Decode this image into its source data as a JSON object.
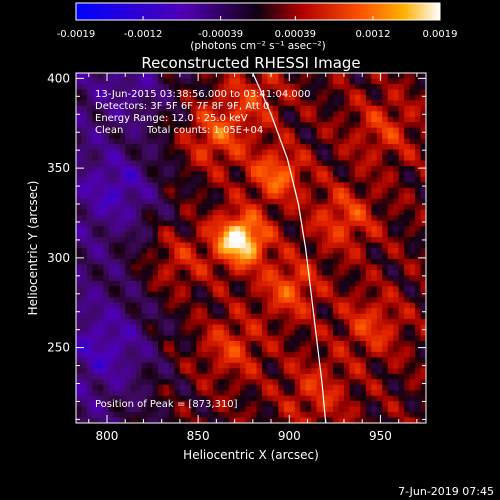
{
  "chart_data": {
    "type": "heatmap",
    "title": "Reconstructed RHESSI Image",
    "xlabel": "Heliocentric X (arcsec)",
    "ylabel": "Heliocentric Y (arcsec)",
    "xlim": [
      783,
      975
    ],
    "ylim": [
      208,
      403
    ],
    "x_ticks": [
      800,
      850,
      900,
      950
    ],
    "y_ticks": [
      250,
      300,
      350,
      400
    ],
    "colorbar": {
      "min": -0.0019,
      "max": 0.0019,
      "tick_values": [
        -0.0019,
        -0.0012,
        -0.00039,
        0.00039,
        0.0012,
        0.0019
      ],
      "tick_labels": [
        "-0.0019",
        "-0.0012",
        "-0.00039",
        "0.00039",
        "0.0012",
        "0.0019"
      ],
      "unit_label": "(photons cm⁻² s⁻¹ asec⁻²)"
    },
    "annotations": {
      "time_range": "13-Jun-2015 03:38:56.000 to 03:41:04.000",
      "detectors": "Detectors: 3F 5F 6F 7F 8F 9F, Att 0",
      "energy": "Energy Range: 12.0 - 25.0 keV",
      "method": "Clean",
      "counts": "Total counts: 1.05E+04",
      "peak_text": "Position of Peak = [873,310]"
    },
    "peak": [
      873,
      310
    ],
    "sources": [
      {
        "x": 873,
        "y": 310,
        "amp": 1.0,
        "sigma": 10
      },
      {
        "x": 893,
        "y": 346,
        "amp": 0.55,
        "sigma": 10
      },
      {
        "x": 860,
        "y": 368,
        "amp": 0.45,
        "sigma": 12
      },
      {
        "x": 900,
        "y": 283,
        "amp": 0.45,
        "sigma": 11
      },
      {
        "x": 930,
        "y": 322,
        "amp": 0.4,
        "sigma": 12
      },
      {
        "x": 945,
        "y": 262,
        "amp": 0.35,
        "sigma": 12
      },
      {
        "x": 868,
        "y": 250,
        "amp": 0.35,
        "sigma": 12
      },
      {
        "x": 915,
        "y": 225,
        "amp": 0.3,
        "sigma": 13
      },
      {
        "x": 952,
        "y": 372,
        "amp": 0.3,
        "sigma": 13
      },
      {
        "x": 838,
        "y": 298,
        "amp": 0.3,
        "sigma": 12
      },
      {
        "x": 880,
        "y": 390,
        "amp": 0.3,
        "sigma": 12
      },
      {
        "x": 808,
        "y": 338,
        "amp": -0.4,
        "sigma": 14
      },
      {
        "x": 803,
        "y": 250,
        "amp": -0.35,
        "sigma": 16
      },
      {
        "x": 818,
        "y": 395,
        "amp": -0.3,
        "sigma": 15
      }
    ],
    "limb_curve": [
      [
        880,
        403
      ],
      [
        890,
        380
      ],
      [
        899,
        355
      ],
      [
        905,
        330
      ],
      [
        909,
        305
      ],
      [
        912,
        280
      ],
      [
        915,
        255
      ],
      [
        918,
        230
      ],
      [
        920,
        208
      ]
    ]
  },
  "footer": {
    "timestamp": "7-Jun-2019 07:45"
  }
}
